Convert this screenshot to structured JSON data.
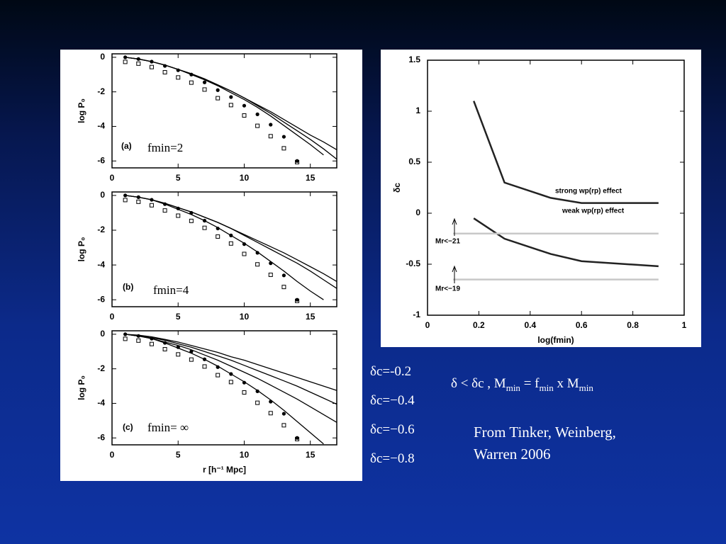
{
  "chart_data": [
    {
      "type": "line",
      "y_label": "log P₀",
      "annotations": [
        "(a)",
        "fmin=2"
      ],
      "x": [
        1,
        2,
        3,
        4,
        5,
        6,
        7,
        8,
        9,
        10,
        11,
        12,
        13,
        14,
        15,
        16,
        17
      ],
      "xlim": [
        0,
        17
      ],
      "xticks": [
        0,
        5,
        10,
        15
      ],
      "ylim": [
        -6.4,
        0.2
      ],
      "yticks": [
        0,
        -2,
        -4,
        -6
      ],
      "series": [
        {
          "marker": "circle",
          "color": "#000",
          "values": [
            0,
            -0.1,
            -0.25,
            -0.5,
            -0.75,
            -1.0,
            -1.45,
            -1.9,
            -2.3,
            -2.8,
            -3.3,
            -3.9,
            -4.6,
            -6.0,
            null,
            null,
            null
          ]
        },
        {
          "marker": "square",
          "color": "#000",
          "values": [
            0,
            -0.1,
            -0.3,
            -0.6,
            -0.9,
            -1.2,
            -1.6,
            -2.1,
            -2.5,
            -3.1,
            -3.7,
            -4.3,
            -5.0,
            -5.8,
            null,
            null,
            null
          ]
        },
        {
          "color": "#000",
          "values": [
            0,
            -0.1,
            -0.25,
            -0.45,
            -0.7,
            -0.95,
            -1.25,
            -1.6,
            -1.95,
            -2.35,
            -2.75,
            -3.15,
            -3.6,
            -4.05,
            -4.5,
            -4.9,
            -5.35
          ]
        },
        {
          "color": "#000",
          "values": [
            0,
            -0.1,
            -0.25,
            -0.45,
            -0.7,
            -0.95,
            -1.25,
            -1.6,
            -1.95,
            -2.35,
            -2.8,
            -3.25,
            -3.75,
            -4.25,
            -4.75,
            -5.3,
            -5.9
          ]
        },
        {
          "color": "#000",
          "values": [
            0,
            -0.1,
            -0.25,
            -0.45,
            -0.7,
            -1.0,
            -1.3,
            -1.65,
            -2.05,
            -2.45,
            -2.9,
            -3.4,
            -3.95,
            -4.5,
            -5.05,
            -5.65,
            null
          ]
        }
      ]
    },
    {
      "type": "line",
      "y_label": "log P₀",
      "annotations": [
        "(b)",
        "fmin=4"
      ],
      "x": [
        1,
        2,
        3,
        4,
        5,
        6,
        7,
        8,
        9,
        10,
        11,
        12,
        13,
        14,
        15,
        16,
        17
      ],
      "xlim": [
        0,
        17
      ],
      "xticks": [
        0,
        5,
        10,
        15
      ],
      "ylim": [
        -6.4,
        0.2
      ],
      "yticks": [
        0,
        -2,
        -4,
        -6
      ],
      "series": [
        {
          "marker": "circle",
          "color": "#000",
          "values": [
            0,
            -0.1,
            -0.25,
            -0.5,
            -0.75,
            -1.0,
            -1.45,
            -1.9,
            -2.3,
            -2.8,
            -3.3,
            -3.9,
            -4.6,
            -6.0,
            null,
            null,
            null
          ]
        },
        {
          "marker": "square",
          "color": "#000",
          "values": [
            0,
            -0.1,
            -0.3,
            -0.6,
            -0.9,
            -1.2,
            -1.6,
            -2.1,
            -2.5,
            -3.1,
            -3.7,
            -4.3,
            -5.0,
            -5.8,
            null,
            null,
            null
          ]
        },
        {
          "color": "#000",
          "values": [
            0,
            -0.1,
            -0.25,
            -0.45,
            -0.7,
            -0.95,
            -1.25,
            -1.55,
            -1.9,
            -2.25,
            -2.6,
            -2.95,
            -3.3,
            -3.7,
            -4.1,
            -4.5,
            -4.95
          ]
        },
        {
          "color": "#000",
          "values": [
            0,
            -0.1,
            -0.25,
            -0.45,
            -0.7,
            -0.95,
            -1.25,
            -1.55,
            -1.9,
            -2.3,
            -2.7,
            -3.1,
            -3.5,
            -3.9,
            -4.35,
            -4.85,
            -5.35
          ]
        },
        {
          "color": "#000",
          "values": [
            0,
            -0.1,
            -0.25,
            -0.5,
            -0.8,
            -1.1,
            -1.45,
            -1.85,
            -2.3,
            -2.75,
            -3.25,
            -3.8,
            -4.35,
            -4.95,
            -5.5,
            -6.0,
            null
          ]
        }
      ]
    },
    {
      "type": "line",
      "y_label": "log P₀",
      "x_label": "r [h⁻¹ Mpc]",
      "annotations": [
        "(c)",
        "fmin= ∞"
      ],
      "x": [
        1,
        2,
        3,
        4,
        5,
        6,
        7,
        8,
        9,
        10,
        11,
        12,
        13,
        14,
        15,
        16,
        17
      ],
      "xlim": [
        0,
        17
      ],
      "xticks": [
        0,
        5,
        10,
        15
      ],
      "ylim": [
        -6.4,
        0.2
      ],
      "yticks": [
        0,
        -2,
        -4,
        -6
      ],
      "series": [
        {
          "marker": "circle",
          "color": "#000",
          "values": [
            0,
            -0.1,
            -0.25,
            -0.5,
            -0.75,
            -1.0,
            -1.45,
            -1.9,
            -2.3,
            -2.8,
            -3.3,
            -3.9,
            -4.6,
            -6.0,
            null,
            null,
            null
          ]
        },
        {
          "marker": "square",
          "color": "#000",
          "values": [
            0,
            -0.1,
            -0.3,
            -0.6,
            -0.9,
            -1.2,
            -1.6,
            -2.1,
            -2.5,
            -3.1,
            -3.7,
            -4.3,
            -5.0,
            -5.8,
            null,
            null,
            null
          ]
        },
        {
          "color": "#000",
          "values": [
            0,
            -0.05,
            -0.15,
            -0.3,
            -0.45,
            -0.65,
            -0.85,
            -1.05,
            -1.3,
            -1.5,
            -1.75,
            -2.0,
            -2.25,
            -2.5,
            -2.75,
            -3.0,
            -3.25
          ]
        },
        {
          "color": "#000",
          "values": [
            0,
            -0.1,
            -0.2,
            -0.35,
            -0.55,
            -0.75,
            -1.0,
            -1.25,
            -1.5,
            -1.8,
            -2.1,
            -2.4,
            -2.7,
            -3.0,
            -3.35,
            -3.7,
            -4.05
          ]
        },
        {
          "color": "#000",
          "values": [
            0,
            -0.1,
            -0.25,
            -0.45,
            -0.65,
            -0.9,
            -1.2,
            -1.5,
            -1.85,
            -2.2,
            -2.55,
            -2.95,
            -3.35,
            -3.75,
            -4.2,
            -4.65,
            -5.1
          ]
        },
        {
          "color": "#000",
          "values": [
            0,
            -0.1,
            -0.25,
            -0.5,
            -0.8,
            -1.1,
            -1.45,
            -1.85,
            -2.3,
            -2.75,
            -3.25,
            -3.8,
            -4.4,
            -5.05,
            -5.7,
            -6.35,
            null
          ]
        }
      ]
    },
    {
      "type": "line",
      "y_label": "δc",
      "x_label": "log(fmin)",
      "xlim": [
        0,
        1
      ],
      "xticks": [
        0,
        0.2,
        0.4,
        0.6,
        0.8,
        1
      ],
      "ylim": [
        -1,
        1.5
      ],
      "yticks": [
        -1,
        -0.5,
        0,
        0.5,
        1,
        1.5
      ],
      "series": [
        {
          "name": "strong wp(rp) effect",
          "color": "#222",
          "x": [
            0.18,
            0.3,
            0.48,
            0.6,
            0.9
          ],
          "values": [
            1.1,
            0.3,
            0.15,
            0.1,
            0.1
          ]
        },
        {
          "name": "weak wp(rp) effect",
          "color": "#222",
          "x": [
            0.18,
            0.3,
            0.48,
            0.6,
            0.9
          ],
          "values": [
            -0.05,
            -0.25,
            -0.4,
            -0.47,
            -0.52
          ]
        },
        {
          "name": "Mr<−21",
          "color": "#c8c8c8",
          "x": [
            0.1,
            0.9
          ],
          "values": [
            -0.2,
            -0.2
          ]
        },
        {
          "name": "Mr<−19",
          "color": "#c8c8c8",
          "x": [
            0.1,
            0.9
          ],
          "values": [
            -0.65,
            -0.65
          ]
        }
      ]
    }
  ],
  "slide": {
    "deltas": [
      "δc=-0.2",
      "δc=−0.4",
      "δc=−0.6",
      "δc=−0.8"
    ],
    "formula": [
      "δ < δc , M",
      "min",
      " = f",
      "min",
      " x  M",
      "min"
    ],
    "credit": [
      "From Tinker, Weinberg,",
      "Warren 2006"
    ]
  }
}
